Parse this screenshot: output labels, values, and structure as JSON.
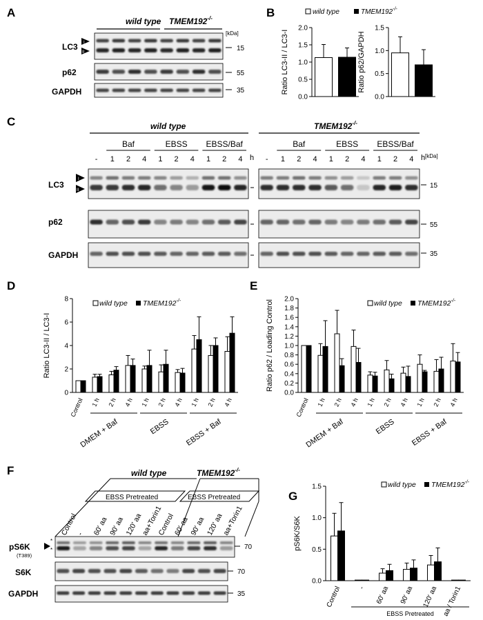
{
  "figure": {
    "panel_letters": {
      "a": "A",
      "b": "B",
      "c": "C",
      "d": "D",
      "e": "E",
      "f": "F",
      "g": "G"
    },
    "genotype_labels": {
      "wild_type": "wild type",
      "tmem_base": "TMEM192",
      "tmem_sup": "-/-"
    },
    "proteins": {
      "lc3": "LC3",
      "p62": "p62",
      "gapdh": "GAPDH",
      "ps6k": "pS6K",
      "ps6k_site": "(T389)",
      "s6k": "S6K"
    },
    "band_markers": {
      "form_i": "I",
      "form_ii": "II",
      "asterisk": "*"
    },
    "kda_unit": "[kDa]",
    "molecular_weights": {
      "mw15": "15",
      "mw55": "55",
      "mw35": "35",
      "mw70": "70"
    }
  },
  "panel_c": {
    "treatment_groups": [
      "Baf",
      "EBSS",
      "EBSS/Baf"
    ],
    "lane_labels": [
      "-",
      "1",
      "2",
      "4",
      "1",
      "2",
      "4",
      "1",
      "2",
      "4"
    ],
    "time_unit": "h"
  },
  "panel_f": {
    "pretreat_label": "EBSS Pretreated",
    "wt_lanes": [
      "Control",
      "-",
      "60' aa",
      "90' aa",
      "120' aa",
      "aa+Torin1"
    ],
    "ko_lanes": [
      "Control",
      "60' aa",
      "90' aa",
      "120' aa",
      "aa+Torin1"
    ]
  },
  "chart_data": [
    {
      "panel": "B-left",
      "type": "bar",
      "categories": [
        "wild type",
        "TMEM192-/-"
      ],
      "series": [
        {
          "name": "Ratio",
          "values": [
            1.13,
            1.14
          ],
          "errors": [
            0.38,
            0.27
          ]
        }
      ],
      "ylabel": "Ratio LC3-II / LC3-I",
      "ylim": [
        0,
        2.0
      ],
      "ticks": [
        "0.0",
        "0.5",
        "1.0",
        "1.5",
        "2.0"
      ]
    },
    {
      "panel": "B-right",
      "type": "bar",
      "categories": [
        "wild type",
        "TMEM192-/-"
      ],
      "series": [
        {
          "name": "Ratio",
          "values": [
            0.95,
            0.69
          ],
          "errors": [
            0.35,
            0.33
          ]
        }
      ],
      "ylabel": "Ratio p62/GAPDH",
      "ylim": [
        0,
        1.5
      ],
      "ticks": [
        "0.0",
        "0.5",
        "1.0",
        "1.5"
      ]
    },
    {
      "panel": "D",
      "type": "bar",
      "categories": [
        "Control",
        "1 h",
        "2 h",
        "4 h",
        "1 h",
        "2 h",
        "4 h",
        "1 h",
        "2 h",
        "4 h"
      ],
      "groups": [
        "DMEM + Baf",
        "EBSS",
        "EBSS + Baf"
      ],
      "series": [
        {
          "name": "wild type",
          "values": [
            1.0,
            1.3,
            1.5,
            2.3,
            2.0,
            1.75,
            1.7,
            3.7,
            3.15,
            3.5
          ],
          "errors": [
            0,
            0.25,
            0.3,
            0.85,
            0.25,
            0.6,
            0.25,
            1.15,
            0.85,
            1.25
          ]
        },
        {
          "name": "TMEM192-/-",
          "values": [
            1.0,
            1.35,
            1.9,
            2.3,
            2.3,
            2.4,
            1.65,
            4.5,
            4.0,
            5.05
          ],
          "errors": [
            0,
            0.2,
            0.3,
            0.55,
            1.3,
            1.2,
            0.4,
            1.95,
            0.65,
            1.4
          ]
        }
      ],
      "ylabel": "Ratio LC3-II / LC3-I",
      "ylim": [
        0,
        8
      ],
      "ticks": [
        "0",
        "2",
        "4",
        "6",
        "8"
      ]
    },
    {
      "panel": "E",
      "type": "bar",
      "categories": [
        "Control",
        "1 h",
        "2 h",
        "4 h",
        "1 h",
        "2 h",
        "4 h",
        "1 h",
        "2 h",
        "4 h"
      ],
      "groups": [
        "DMEM + Baf",
        "EBSS",
        "EBSS + Baf"
      ],
      "series": [
        {
          "name": "wild type",
          "values": [
            1.0,
            0.79,
            1.25,
            0.98,
            0.37,
            0.48,
            0.41,
            0.6,
            0.45,
            0.67
          ],
          "errors": [
            0,
            0.25,
            0.5,
            0.35,
            0.07,
            0.2,
            0.13,
            0.2,
            0.25,
            0.37
          ]
        },
        {
          "name": "TMEM192-/-",
          "values": [
            1.0,
            0.98,
            0.57,
            0.64,
            0.35,
            0.29,
            0.34,
            0.44,
            0.5,
            0.65
          ],
          "errors": [
            0,
            0.55,
            0.15,
            0.3,
            0.08,
            0.1,
            0.22,
            0.03,
            0.25,
            0.2
          ]
        }
      ],
      "ylabel": "Ratio p62 / Loading Control",
      "ylim": [
        0,
        2.0
      ],
      "ticks": [
        "0.0",
        "0.2",
        "0.4",
        "0.6",
        "0.8",
        "1.0",
        "1.2",
        "1.4",
        "1.6",
        "1.8",
        "2.0"
      ]
    },
    {
      "panel": "G",
      "type": "bar",
      "categories": [
        "Control",
        "-",
        "60' aa",
        "90' aa",
        "120' aa",
        "aa / Torin1"
      ],
      "group": "EBSS Pretreated",
      "series": [
        {
          "name": "wild type",
          "values": [
            0.71,
            0.01,
            0.12,
            0.18,
            0.25,
            0.01
          ],
          "errors": [
            0.36,
            0,
            0.07,
            0.1,
            0.15,
            0
          ]
        },
        {
          "name": "TMEM192-/-",
          "values": [
            0.79,
            0.01,
            0.16,
            0.2,
            0.3,
            0.01
          ],
          "errors": [
            0.45,
            0,
            0.1,
            0.13,
            0.22,
            0
          ]
        }
      ],
      "ylabel": "pS6K/S6K",
      "ylim": [
        0,
        1.5
      ],
      "ticks": [
        "0.0",
        "0.5",
        "1.0",
        "1.5"
      ]
    }
  ]
}
